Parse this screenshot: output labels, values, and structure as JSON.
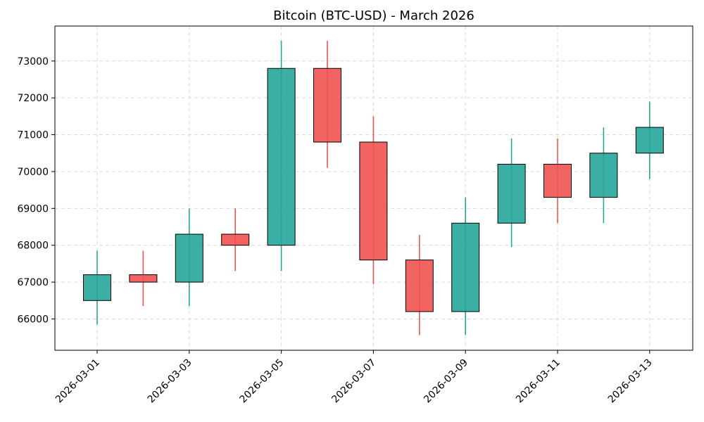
{
  "chart_data": {
    "type": "candlestick",
    "title": "Bitcoin (BTC-USD) - March 2026",
    "xlabel": "",
    "ylabel": "",
    "ylim": [
      65150,
      73950
    ],
    "yticks": [
      66000,
      67000,
      68000,
      69000,
      70000,
      71000,
      72000,
      73000
    ],
    "xticks": [
      "2026-03-01",
      "2026-03-03",
      "2026-03-05",
      "2026-03-07",
      "2026-03-09",
      "2026-03-11",
      "2026-03-13"
    ],
    "grid": true,
    "colors": {
      "up": "#26a69a",
      "down": "#ef5350",
      "edge": "#000000"
    },
    "candles": [
      {
        "date": "2026-03-01",
        "open": 66500,
        "high": 67850,
        "low": 65850,
        "close": 67200
      },
      {
        "date": "2026-03-02",
        "open": 67200,
        "high": 67850,
        "low": 66350,
        "close": 67000
      },
      {
        "date": "2026-03-03",
        "open": 67000,
        "high": 69000,
        "low": 66350,
        "close": 68300
      },
      {
        "date": "2026-03-04",
        "open": 68300,
        "high": 69000,
        "low": 67300,
        "close": 68000
      },
      {
        "date": "2026-03-05",
        "open": 68000,
        "high": 73550,
        "low": 67300,
        "close": 72800
      },
      {
        "date": "2026-03-06",
        "open": 72800,
        "high": 73550,
        "low": 70100,
        "close": 70800
      },
      {
        "date": "2026-03-07",
        "open": 70800,
        "high": 71500,
        "low": 66950,
        "close": 67600
      },
      {
        "date": "2026-03-08",
        "open": 67600,
        "high": 68280,
        "low": 65560,
        "close": 66200
      },
      {
        "date": "2026-03-09",
        "open": 66200,
        "high": 69300,
        "low": 65560,
        "close": 68600
      },
      {
        "date": "2026-03-10",
        "open": 68600,
        "high": 70900,
        "low": 67950,
        "close": 70200
      },
      {
        "date": "2026-03-11",
        "open": 70200,
        "high": 70900,
        "low": 68600,
        "close": 69300
      },
      {
        "date": "2026-03-12",
        "open": 69300,
        "high": 71200,
        "low": 68600,
        "close": 70500
      },
      {
        "date": "2026-03-13",
        "open": 70500,
        "high": 71900,
        "low": 69800,
        "close": 71200
      }
    ]
  }
}
